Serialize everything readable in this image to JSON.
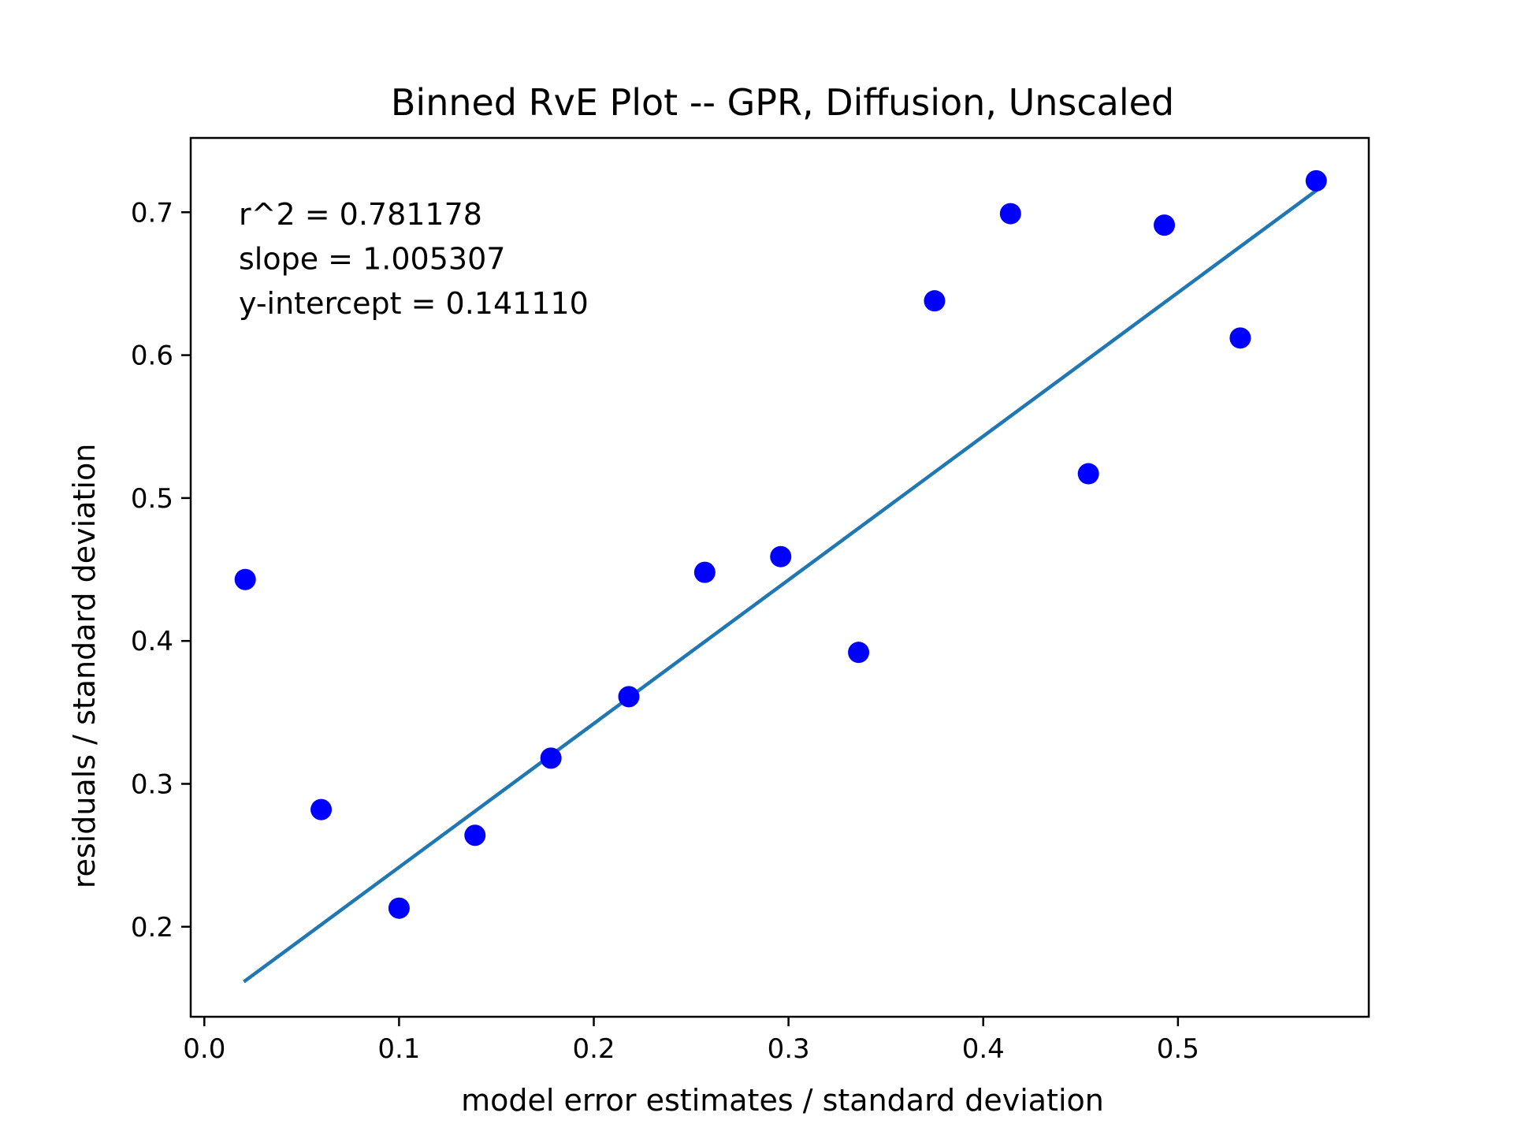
{
  "chart_data": {
    "type": "scatter",
    "title": "Binned RvE Plot -- GPR, Diffusion, Unscaled",
    "xlabel": "model error estimates / standard deviation",
    "ylabel": "residuals / standard deviation",
    "xlim": [
      -0.007,
      0.598
    ],
    "ylim": [
      0.137,
      0.752
    ],
    "xticks": [
      0.0,
      0.1,
      0.2,
      0.3,
      0.4,
      0.5
    ],
    "xtick_labels": [
      "0.0",
      "0.1",
      "0.2",
      "0.3",
      "0.4",
      "0.5"
    ],
    "yticks": [
      0.2,
      0.3,
      0.4,
      0.5,
      0.6,
      0.7
    ],
    "ytick_labels": [
      "0.2",
      "0.3",
      "0.4",
      "0.5",
      "0.6",
      "0.7"
    ],
    "grid": false,
    "legend": "none",
    "annotations": [
      "r^2 = 0.781178",
      "slope = 1.005307",
      "y-intercept = 0.141110"
    ],
    "series": [
      {
        "kind": "scatter",
        "color": "#0000ff",
        "points": [
          {
            "x": 0.021,
            "y": 0.443
          },
          {
            "x": 0.06,
            "y": 0.282
          },
          {
            "x": 0.1,
            "y": 0.213
          },
          {
            "x": 0.139,
            "y": 0.264
          },
          {
            "x": 0.178,
            "y": 0.318
          },
          {
            "x": 0.218,
            "y": 0.361
          },
          {
            "x": 0.257,
            "y": 0.448
          },
          {
            "x": 0.296,
            "y": 0.459
          },
          {
            "x": 0.336,
            "y": 0.392
          },
          {
            "x": 0.375,
            "y": 0.638
          },
          {
            "x": 0.414,
            "y": 0.699
          },
          {
            "x": 0.454,
            "y": 0.517
          },
          {
            "x": 0.493,
            "y": 0.691
          },
          {
            "x": 0.532,
            "y": 0.612
          },
          {
            "x": 0.571,
            "y": 0.722
          }
        ]
      },
      {
        "kind": "line",
        "color": "#1f77b4",
        "slope": 1.005307,
        "intercept": 0.14111,
        "x": [
          0.021,
          0.571
        ]
      }
    ]
  }
}
